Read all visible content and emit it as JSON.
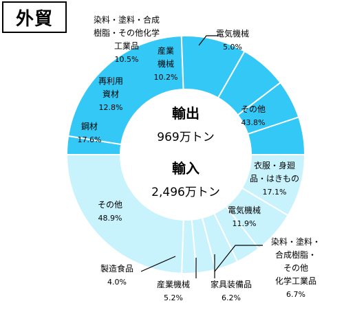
{
  "title": "外貿",
  "chart_data": [
    {
      "type": "pie",
      "name": "輸出",
      "total": "969万トン",
      "colors": {
        "fill": "#33c8f5",
        "stroke": "#ffffff"
      },
      "slices": [
        {
          "label_lines": [
            "電気機械"
          ],
          "pct_label": "5.0%",
          "value": 5.0
        },
        {
          "label_lines": [
            "その他"
          ],
          "pct_label": "43.8%",
          "value": 43.8
        },
        {
          "label_lines": [
            "鋼材"
          ],
          "pct_label": "17.6%",
          "value": 17.6
        },
        {
          "label_lines": [
            "再利用",
            "資材"
          ],
          "pct_label": "12.8%",
          "value": 12.8
        },
        {
          "label_lines": [
            "染料・塗料・合成",
            "樹脂・その他化学",
            "工業品"
          ],
          "pct_label": "10.5%",
          "value": 10.5
        },
        {
          "label_lines": [
            "産業",
            "機械"
          ],
          "pct_label": "10.2%",
          "value": 10.2
        }
      ]
    },
    {
      "type": "pie",
      "name": "輸入",
      "total": "2,496万トン",
      "colors": {
        "fill": "#c8f3fc",
        "stroke": "#ffffff"
      },
      "slices": [
        {
          "label_lines": [
            "衣服・身廻",
            "品・はきもの"
          ],
          "pct_label": "17.1%",
          "value": 17.1
        },
        {
          "label_lines": [
            "電気機械"
          ],
          "pct_label": "11.9%",
          "value": 11.9
        },
        {
          "label_lines": [
            "染料・塗料・",
            "合成樹脂・",
            "その他",
            "化学工業品"
          ],
          "pct_label": "6.7%",
          "value": 6.7
        },
        {
          "label_lines": [
            "家具装備品"
          ],
          "pct_label": "6.2%",
          "value": 6.2
        },
        {
          "label_lines": [
            "産業機械"
          ],
          "pct_label": "5.2%",
          "value": 5.2
        },
        {
          "label_lines": [
            "製造食品"
          ],
          "pct_label": "4.0%",
          "value": 4.0
        },
        {
          "label_lines": [
            "その他"
          ],
          "pct_label": "48.9%",
          "value": 48.9
        }
      ]
    }
  ]
}
